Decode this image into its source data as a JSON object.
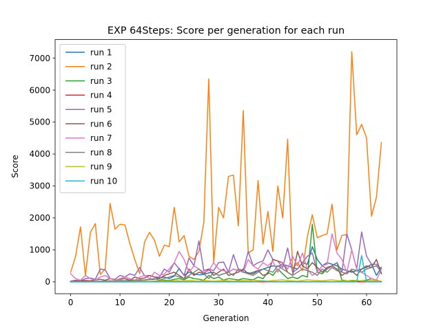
{
  "chart_data": {
    "type": "line",
    "title": "EXP 64Steps: Score per generation for each run",
    "xlabel": "Generation",
    "ylabel": "Score",
    "xlim": [
      -3.15,
      66.15
    ],
    "ylim": [
      -372,
      7581
    ],
    "xticks": [
      0,
      10,
      20,
      30,
      40,
      50,
      60
    ],
    "yticks": [
      0,
      1000,
      2000,
      3000,
      4000,
      5000,
      6000,
      7000
    ],
    "legend": "top-left",
    "grid": false,
    "series": [
      {
        "name": "run 1",
        "color": "#1f77b4",
        "values": [
          5,
          8,
          12,
          10,
          15,
          20,
          18,
          25,
          30,
          22,
          40,
          35,
          45,
          50,
          60,
          55,
          70,
          80,
          120,
          150,
          100,
          180,
          420,
          200,
          300,
          250,
          220,
          230,
          280,
          300,
          200,
          250,
          300,
          400,
          350,
          300,
          280,
          250,
          350,
          400,
          450,
          500,
          480,
          550,
          500,
          450,
          400,
          600,
          550,
          1100,
          700,
          500,
          600,
          550,
          500,
          400,
          350,
          300,
          350,
          400,
          450,
          550,
          200,
          450
        ]
      },
      {
        "name": "run 2",
        "color": "#ff7f0e",
        "values": [
          300,
          800,
          1720,
          200,
          1550,
          1820,
          230,
          400,
          2450,
          1650,
          1800,
          1780,
          1200,
          700,
          250,
          1250,
          1550,
          1300,
          800,
          1150,
          1100,
          2330,
          1250,
          1450,
          800,
          700,
          950,
          1850,
          6350,
          600,
          2330,
          2000,
          3300,
          3340,
          1750,
          5360,
          900,
          1000,
          3170,
          1180,
          2200,
          950,
          3000,
          2000,
          4460,
          400,
          600,
          350,
          1420,
          2100,
          1380,
          1450,
          1500,
          2430,
          1000,
          1450,
          1480,
          7200,
          4600,
          4930,
          4500,
          2050,
          2650,
          4360
        ]
      },
      {
        "name": "run 3",
        "color": "#2ca02c",
        "values": [
          0,
          0,
          0,
          0,
          0,
          0,
          0,
          0,
          0,
          0,
          0,
          0,
          0,
          0,
          5,
          10,
          15,
          20,
          30,
          50,
          40,
          80,
          100,
          60,
          150,
          100,
          80,
          50,
          200,
          100,
          150,
          50,
          100,
          80,
          60,
          100,
          80,
          60,
          150,
          100,
          300,
          200,
          400,
          250,
          100,
          150,
          100,
          200,
          150,
          1800,
          300,
          250,
          400,
          500,
          600,
          50,
          30,
          20,
          10,
          30,
          50,
          100,
          50,
          10
        ]
      },
      {
        "name": "run 4",
        "color": "#d62728",
        "values": [
          0,
          0,
          0,
          0,
          0,
          0,
          0,
          0,
          0,
          0,
          0,
          0,
          0,
          0,
          0,
          0,
          0,
          0,
          0,
          0,
          0,
          0,
          0,
          0,
          0,
          0,
          0,
          0,
          0,
          0,
          0,
          0,
          0,
          0,
          0,
          0,
          0,
          0,
          0,
          0,
          0,
          0,
          0,
          0,
          0,
          0,
          0,
          0,
          0,
          0,
          0,
          0,
          0,
          0,
          0,
          0,
          0,
          0,
          0,
          0,
          0,
          0,
          0,
          0
        ]
      },
      {
        "name": "run 5",
        "color": "#9467bd",
        "values": [
          20,
          50,
          30,
          100,
          120,
          80,
          400,
          380,
          100,
          80,
          200,
          150,
          250,
          200,
          450,
          180,
          200,
          150,
          150,
          400,
          300,
          600,
          400,
          200,
          750,
          500,
          1280,
          350,
          400,
          350,
          600,
          620,
          300,
          850,
          400,
          350,
          950,
          500,
          600,
          650,
          1000,
          700,
          650,
          450,
          1060,
          300,
          400,
          600,
          800,
          900,
          300,
          500,
          400,
          500,
          600,
          300,
          1500,
          1000,
          400,
          1560,
          800,
          550,
          550,
          400
        ]
      },
      {
        "name": "run 6",
        "color": "#8c564b",
        "values": [
          10,
          20,
          30,
          40,
          30,
          60,
          80,
          50,
          100,
          60,
          80,
          100,
          50,
          150,
          100,
          120,
          200,
          150,
          100,
          200,
          250,
          300,
          200,
          100,
          400,
          200,
          300,
          250,
          400,
          200,
          300,
          400,
          200,
          250,
          300,
          400,
          250,
          300,
          350,
          200,
          250,
          700,
          650,
          600,
          300,
          200,
          950,
          500,
          400,
          600,
          450,
          300,
          450,
          500,
          400,
          200,
          300,
          350,
          200,
          400,
          500,
          450,
          700,
          250
        ]
      },
      {
        "name": "run 7",
        "color": "#e377c2",
        "values": [
          250,
          100,
          50,
          200,
          100,
          50,
          150,
          200,
          100,
          50,
          100,
          150,
          100,
          50,
          150,
          200,
          100,
          300,
          200,
          250,
          400,
          600,
          950,
          700,
          300,
          500,
          400,
          300,
          350,
          600,
          400,
          350,
          300,
          400,
          350,
          300,
          700,
          500,
          400,
          600,
          500,
          650,
          300,
          600,
          400,
          800,
          500,
          900,
          400,
          200,
          300,
          500,
          550,
          1500,
          900,
          700,
          300,
          1000,
          400,
          300,
          200,
          100,
          50,
          400
        ]
      },
      {
        "name": "run 8",
        "color": "#7f7f7f",
        "values": [
          0,
          5,
          10,
          5,
          10,
          15,
          10,
          20,
          30,
          20,
          40,
          30,
          20,
          50,
          40,
          60,
          80,
          100,
          50,
          100,
          150,
          200,
          150,
          100,
          200,
          300,
          400,
          250,
          100,
          300,
          200,
          250,
          300,
          200,
          400,
          300,
          250,
          200,
          300,
          400,
          350,
          300,
          500,
          400,
          300,
          200,
          300,
          400,
          350,
          300,
          200,
          400,
          300,
          450,
          350,
          300,
          250,
          400,
          350,
          300,
          400,
          450,
          500,
          300
        ]
      },
      {
        "name": "run 9",
        "color": "#bcbd22",
        "values": [
          0,
          0,
          0,
          0,
          0,
          5,
          0,
          5,
          10,
          5,
          10,
          5,
          10,
          15,
          10,
          20,
          15,
          10,
          20,
          30,
          20,
          40,
          30,
          20,
          50,
          30,
          20,
          40,
          30,
          20,
          30,
          40,
          30,
          20,
          30,
          40,
          30,
          50,
          40,
          30,
          20,
          40,
          50,
          60,
          40,
          30,
          20,
          40,
          60,
          50,
          40,
          30,
          50,
          60,
          40,
          30,
          20,
          50,
          40,
          30,
          20,
          40,
          30,
          20
        ]
      },
      {
        "name": "run 10",
        "color": "#17becf",
        "values": [
          0,
          0,
          0,
          0,
          0,
          0,
          0,
          0,
          0,
          0,
          0,
          0,
          0,
          0,
          0,
          0,
          0,
          0,
          0,
          0,
          0,
          0,
          0,
          0,
          0,
          0,
          0,
          0,
          0,
          0,
          0,
          0,
          0,
          0,
          0,
          0,
          0,
          0,
          10,
          20,
          10,
          0,
          0,
          0,
          0,
          0,
          0,
          0,
          0,
          0,
          0,
          0,
          0,
          0,
          0,
          0,
          0,
          0,
          0,
          820,
          0,
          0,
          0,
          0
        ]
      }
    ]
  }
}
